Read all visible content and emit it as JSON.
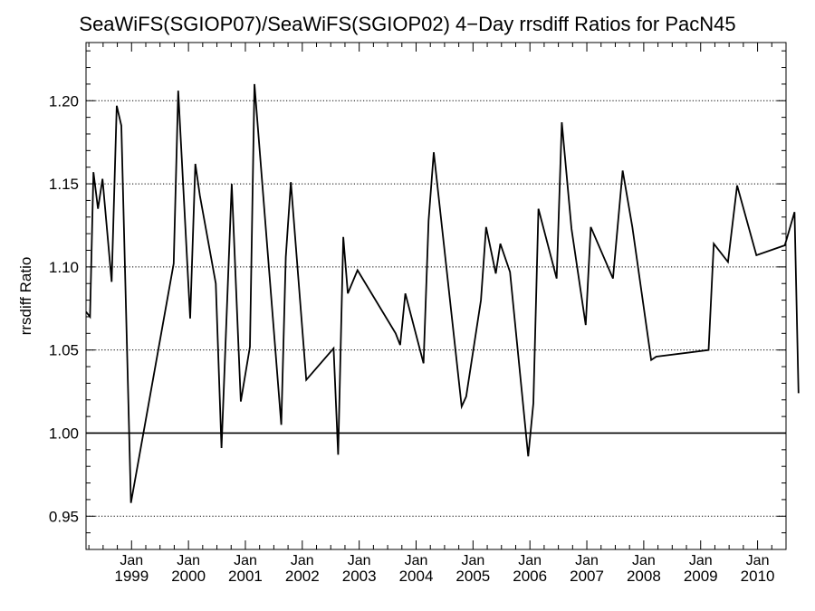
{
  "chart_data": {
    "type": "line",
    "title": "SeaWiFS(SGIOP07)/SeaWiFS(SGIOP02) 4−Day rrsdiff Ratios for PacN45",
    "xlabel": "",
    "ylabel": "rrsdiff Ratio",
    "xlim": [
      1998.2,
      2010.5
    ],
    "ylim": [
      0.93,
      1.235
    ],
    "y_ticks": [
      0.95,
      1.0,
      1.05,
      1.1,
      1.15,
      1.2
    ],
    "y_tick_labels": [
      "0.95",
      "1.00",
      "1.05",
      "1.10",
      "1.15",
      "1.20"
    ],
    "x_ticks": [
      1999,
      2000,
      2001,
      2002,
      2003,
      2004,
      2005,
      2006,
      2007,
      2008,
      2009,
      2010
    ],
    "x_tick_labels": [
      {
        "month": "Jan",
        "year": "1999"
      },
      {
        "month": "Jan",
        "year": "2000"
      },
      {
        "month": "Jan",
        "year": "2001"
      },
      {
        "month": "Jan",
        "year": "2002"
      },
      {
        "month": "Jan",
        "year": "2003"
      },
      {
        "month": "Jan",
        "year": "2004"
      },
      {
        "month": "Jan",
        "year": "2005"
      },
      {
        "month": "Jan",
        "year": "2006"
      },
      {
        "month": "Jan",
        "year": "2007"
      },
      {
        "month": "Jan",
        "year": "2008"
      },
      {
        "month": "Jan",
        "year": "2009"
      },
      {
        "month": "Jan",
        "year": "2010"
      }
    ],
    "grid": "horizontal dotted at major y ticks",
    "reference_line": 1.0,
    "series": [
      {
        "color": "#000000",
        "points": [
          [
            1998.2,
            1.073
          ],
          [
            1998.27,
            1.07
          ],
          [
            1998.33,
            1.157
          ],
          [
            1998.41,
            1.135
          ],
          [
            1998.49,
            1.153
          ],
          [
            1998.65,
            1.091
          ],
          [
            1998.74,
            1.197
          ],
          [
            1998.82,
            1.185
          ],
          [
            1998.99,
            0.958
          ],
          [
            1999.74,
            1.102
          ],
          [
            1999.82,
            1.206
          ],
          [
            2000.03,
            1.069
          ],
          [
            2000.12,
            1.162
          ],
          [
            2000.2,
            1.143
          ],
          [
            2000.48,
            1.09
          ],
          [
            2000.58,
            0.991
          ],
          [
            2000.76,
            1.15
          ],
          [
            2000.92,
            1.019
          ],
          [
            2001.08,
            1.052
          ],
          [
            2001.16,
            1.21
          ],
          [
            2001.63,
            1.005
          ],
          [
            2001.71,
            1.106
          ],
          [
            2001.8,
            1.151
          ],
          [
            2002.07,
            1.032
          ],
          [
            2002.55,
            1.051
          ],
          [
            2002.63,
            0.987
          ],
          [
            2002.72,
            1.118
          ],
          [
            2002.8,
            1.084
          ],
          [
            2002.97,
            1.098
          ],
          [
            2003.64,
            1.06
          ],
          [
            2003.72,
            1.053
          ],
          [
            2003.81,
            1.084
          ],
          [
            2004.13,
            1.042
          ],
          [
            2004.22,
            1.128
          ],
          [
            2004.31,
            1.169
          ],
          [
            2004.8,
            1.016
          ],
          [
            2004.88,
            1.022
          ],
          [
            2005.14,
            1.08
          ],
          [
            2005.23,
            1.124
          ],
          [
            2005.4,
            1.096
          ],
          [
            2005.48,
            1.114
          ],
          [
            2005.65,
            1.097
          ],
          [
            2005.97,
            0.986
          ],
          [
            2006.06,
            1.018
          ],
          [
            2006.15,
            1.135
          ],
          [
            2006.47,
            1.093
          ],
          [
            2006.56,
            1.187
          ],
          [
            2006.73,
            1.123
          ],
          [
            2006.98,
            1.065
          ],
          [
            2007.07,
            1.124
          ],
          [
            2007.46,
            1.093
          ],
          [
            2007.63,
            1.158
          ],
          [
            2007.8,
            1.124
          ],
          [
            2008.13,
            1.044
          ],
          [
            2008.22,
            1.046
          ],
          [
            2009.14,
            1.05
          ],
          [
            2009.23,
            1.114
          ],
          [
            2009.48,
            1.103
          ],
          [
            2009.64,
            1.149
          ],
          [
            2009.98,
            1.107
          ],
          [
            2010.48,
            1.113
          ],
          [
            2010.65,
            1.133
          ],
          [
            2010.72,
            1.024
          ]
        ]
      }
    ]
  }
}
